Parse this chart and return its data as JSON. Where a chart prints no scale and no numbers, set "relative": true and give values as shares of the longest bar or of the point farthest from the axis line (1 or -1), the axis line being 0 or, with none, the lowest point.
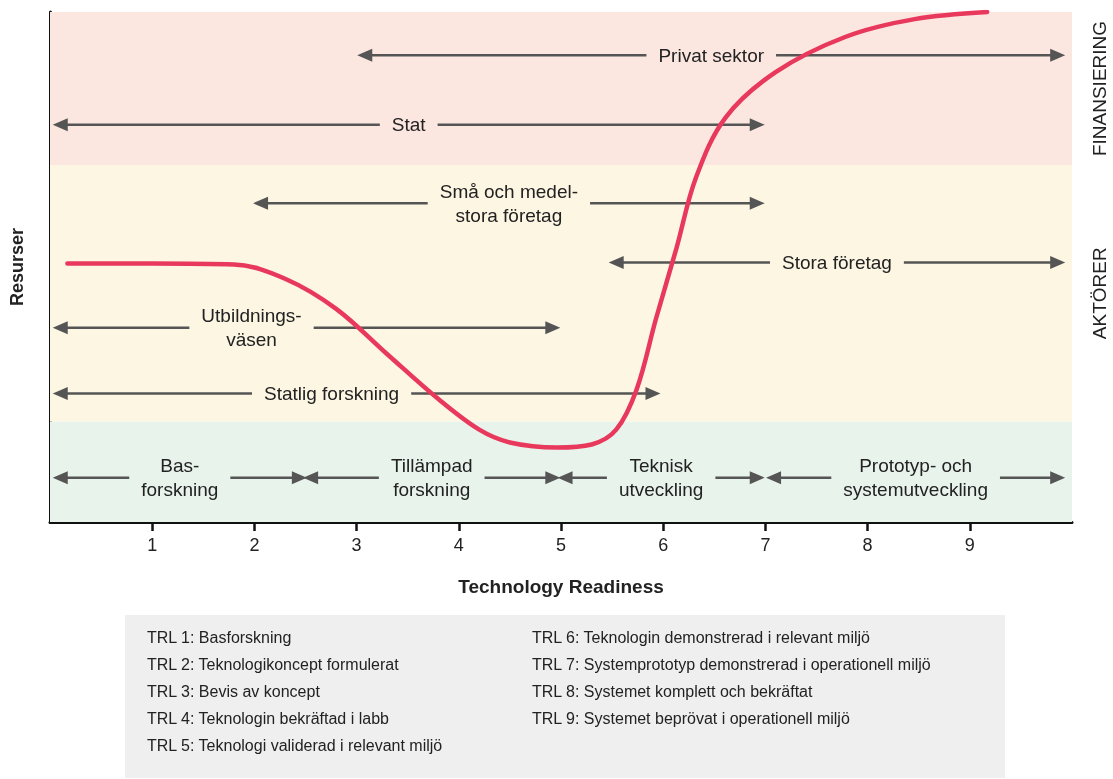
{
  "chart_data": {
    "type": "line",
    "relative": true,
    "xlabel": "Technology Readiness",
    "ylabel": "Resurser",
    "series": [
      {
        "color": "#e8395d",
        "x": [
          0.17,
          1.0,
          1.8,
          2.3,
          2.8,
          3.3,
          3.8,
          4.2,
          4.5,
          4.96,
          5.3,
          5.54,
          5.74,
          5.93,
          6.13,
          6.32,
          6.61,
          7.1,
          7.78,
          8.46,
          9.17
        ],
        "values": [
          0.507,
          0.507,
          0.505,
          0.477,
          0.418,
          0.329,
          0.241,
          0.181,
          0.156,
          0.146,
          0.152,
          0.181,
          0.26,
          0.399,
          0.537,
          0.675,
          0.793,
          0.882,
          0.951,
          0.986,
          1.0
        ]
      },
      {
        "name": "Privat sektor",
        "color": "#555555",
        "marker": "triangle",
        "x": [
          3.08,
          9.86
        ],
        "values": [
          0.915,
          0.915
        ]
      },
      {
        "name": "Stat",
        "color": "#555555",
        "marker": "triangle",
        "x": [
          0.1,
          6.92
        ],
        "values": [
          0.779,
          0.779
        ]
      },
      {
        "name": "Små och medel-\nstora företag",
        "color": "#555555",
        "marker": "triangle",
        "x": [
          2.06,
          6.92
        ],
        "values": [
          0.625,
          0.625
        ]
      },
      {
        "name": "Stora företag",
        "color": "#555555",
        "marker": "triangle",
        "x": [
          5.54,
          9.86
        ],
        "values": [
          0.509,
          0.509
        ]
      },
      {
        "name": "Utbildnings-\nväsen",
        "color": "#555555",
        "marker": "triangle",
        "x": [
          0.1,
          4.92
        ],
        "values": [
          0.381,
          0.381
        ]
      },
      {
        "name": "Statlig forskning",
        "color": "#555555",
        "marker": "triangle",
        "x": [
          0.1,
          5.9
        ],
        "values": [
          0.252,
          0.252
        ]
      },
      {
        "name": "Bas-\nforskning",
        "color": "#555555",
        "marker": "triangle",
        "x": [
          0.1,
          2.44
        ],
        "values": [
          0.087,
          0.087
        ]
      },
      {
        "name": "Tillämpad\nforskning",
        "color": "#555555",
        "marker": "triangle",
        "x": [
          2.55,
          4.92
        ],
        "values": [
          0.087,
          0.087
        ]
      },
      {
        "name": "Teknisk\nutveckling",
        "color": "#555555",
        "marker": "triangle",
        "x": [
          5.04,
          6.92
        ],
        "values": [
          0.087,
          0.087
        ]
      },
      {
        "name": "Prototyp- och\nsystemutveckling",
        "color": "#555555",
        "marker": "triangle",
        "x": [
          7.08,
          9.86
        ],
        "values": [
          0.087,
          0.087
        ]
      }
    ],
    "xlim": [
      0,
      10
    ],
    "xticks": [
      1,
      2,
      3,
      4,
      5,
      6,
      7,
      8,
      9
    ],
    "tick_labels": "x",
    "grid": false,
    "bands": [
      {
        "axis": "y",
        "from": 0,
        "to": 0.197,
        "color": "#e8f3ec"
      },
      {
        "axis": "y",
        "from": 0.197,
        "to": 0.7,
        "label": "AKTÖRER",
        "color": "#fdf6e3"
      },
      {
        "axis": "y",
        "from": 0.7,
        "to": 1.0,
        "label": "FINANSIERING",
        "color": "#fbe6e0"
      }
    ],
    "annotations": [
      "TRL 1: Basforskning",
      "TRL 2: Teknologikoncept formulerat",
      "TRL 3: Bevis av koncept",
      "TRL 4: Teknologin bekräftad i labb",
      "TRL 5: Teknologi validerad i relevant miljö",
      "TRL 6: Teknologin demonstrerad i relevant miljö",
      "TRL 7: Systemprototyp demonstrerad i operationell miljö",
      "TRL 8: Systemet komplett och bekräftat",
      "TRL 9: Systemet beprövat i operationell miljö"
    ]
  }
}
